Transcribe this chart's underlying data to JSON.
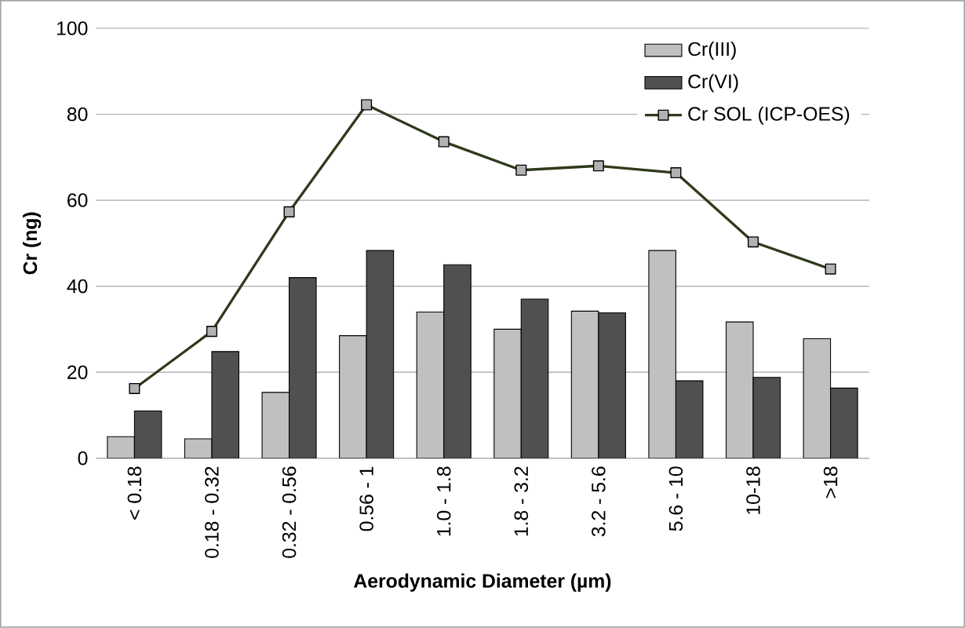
{
  "chart_data": {
    "type": "bar",
    "xlabel": "Aerodynamic Diameter (µm)",
    "ylabel": "Cr (ng)",
    "categories": [
      "< 0.18",
      "0.18 - 0.32",
      "0.32 - 0.56",
      "0.56 - 1",
      "1.0 - 1.8",
      "1.8 - 3.2",
      "3.2 - 5.6",
      "5.6 - 10",
      "10-18",
      ">18"
    ],
    "series": [
      {
        "name": "Cr(III)",
        "color": "#c0c0c0",
        "values": [
          5,
          4.5,
          15.3,
          28.5,
          34,
          30,
          34.2,
          48.3,
          31.7,
          27.8
        ]
      },
      {
        "name": "Cr(VI)",
        "color": "#505050",
        "values": [
          11,
          24.8,
          42,
          48.3,
          45,
          37,
          33.8,
          18,
          18.8,
          16.3
        ]
      },
      {
        "name": "Cr SOL (ICP-OES)",
        "type": "line",
        "color": "#2e3a1a",
        "marker": "square",
        "values": [
          16.2,
          29.5,
          57.3,
          82.2,
          73.6,
          67,
          68,
          66.4,
          50.3,
          44
        ]
      }
    ],
    "ylim": [
      0,
      100
    ],
    "yticks": [
      0,
      20,
      40,
      60,
      80,
      100
    ],
    "grid": "y",
    "legend": "top right"
  }
}
